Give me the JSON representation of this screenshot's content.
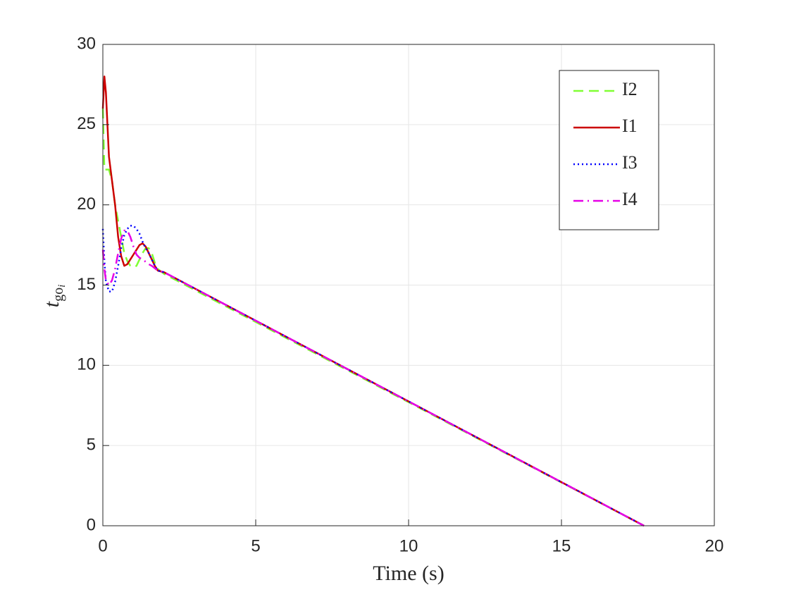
{
  "chart_data": {
    "type": "line",
    "xlabel": "Time (s)",
    "ylabel": {
      "base": "t",
      "sub": "go",
      "subsub": "i"
    },
    "x": [
      0,
      0.05,
      0.1,
      0.2,
      0.3,
      0.4,
      0.5,
      0.6,
      0.7,
      0.8,
      0.9,
      1.0,
      1.1,
      1.2,
      1.3,
      1.4,
      1.5,
      1.6,
      1.7,
      1.8,
      2.0,
      17.7
    ],
    "series": [
      {
        "name": "I2",
        "color": "#80ff33",
        "dash": "dashed",
        "values": [
          26,
          22.2,
          22.2,
          22.2,
          21.5,
          20,
          19,
          18,
          17,
          16.5,
          16.2,
          16.1,
          16.2,
          16.6,
          17,
          17.3,
          17.3,
          17,
          16.4,
          16,
          15.7,
          0
        ]
      },
      {
        "name": "I1",
        "color": "#cc0000",
        "dash": "solid",
        "values": [
          26,
          28,
          27,
          23,
          21.5,
          20,
          18,
          16.8,
          16.2,
          16.3,
          16.6,
          16.9,
          17.2,
          17.5,
          17.6,
          17.4,
          17,
          16.6,
          16.2,
          15.9,
          15.8,
          0
        ]
      },
      {
        "name": "I3",
        "color": "#0000ff",
        "dash": "dotted",
        "values": [
          18.5,
          16.5,
          15.2,
          14.6,
          14.6,
          15.2,
          16.2,
          17.3,
          18.1,
          18.5,
          18.7,
          18.7,
          18.5,
          18.2,
          17.7,
          17.3,
          17,
          16.6,
          16.2,
          15.9,
          15.8,
          0
        ]
      },
      {
        "name": "I4",
        "color": "#e600e6",
        "dash": "dashdot",
        "values": [
          17.2,
          16,
          15.3,
          15,
          15.3,
          16,
          17,
          17.9,
          18.4,
          18.4,
          18,
          17.4,
          16.9,
          16.7,
          16.6,
          16.45,
          16.3,
          16.2,
          16.05,
          15.9,
          15.8,
          0
        ]
      }
    ],
    "xlim": [
      0,
      20
    ],
    "xticks": [
      0,
      5,
      10,
      15,
      20
    ],
    "ylim": [
      0,
      30
    ],
    "yticks": [
      0,
      5,
      10,
      15,
      20,
      25,
      30
    ],
    "grid": true,
    "legend": "upper-right"
  }
}
